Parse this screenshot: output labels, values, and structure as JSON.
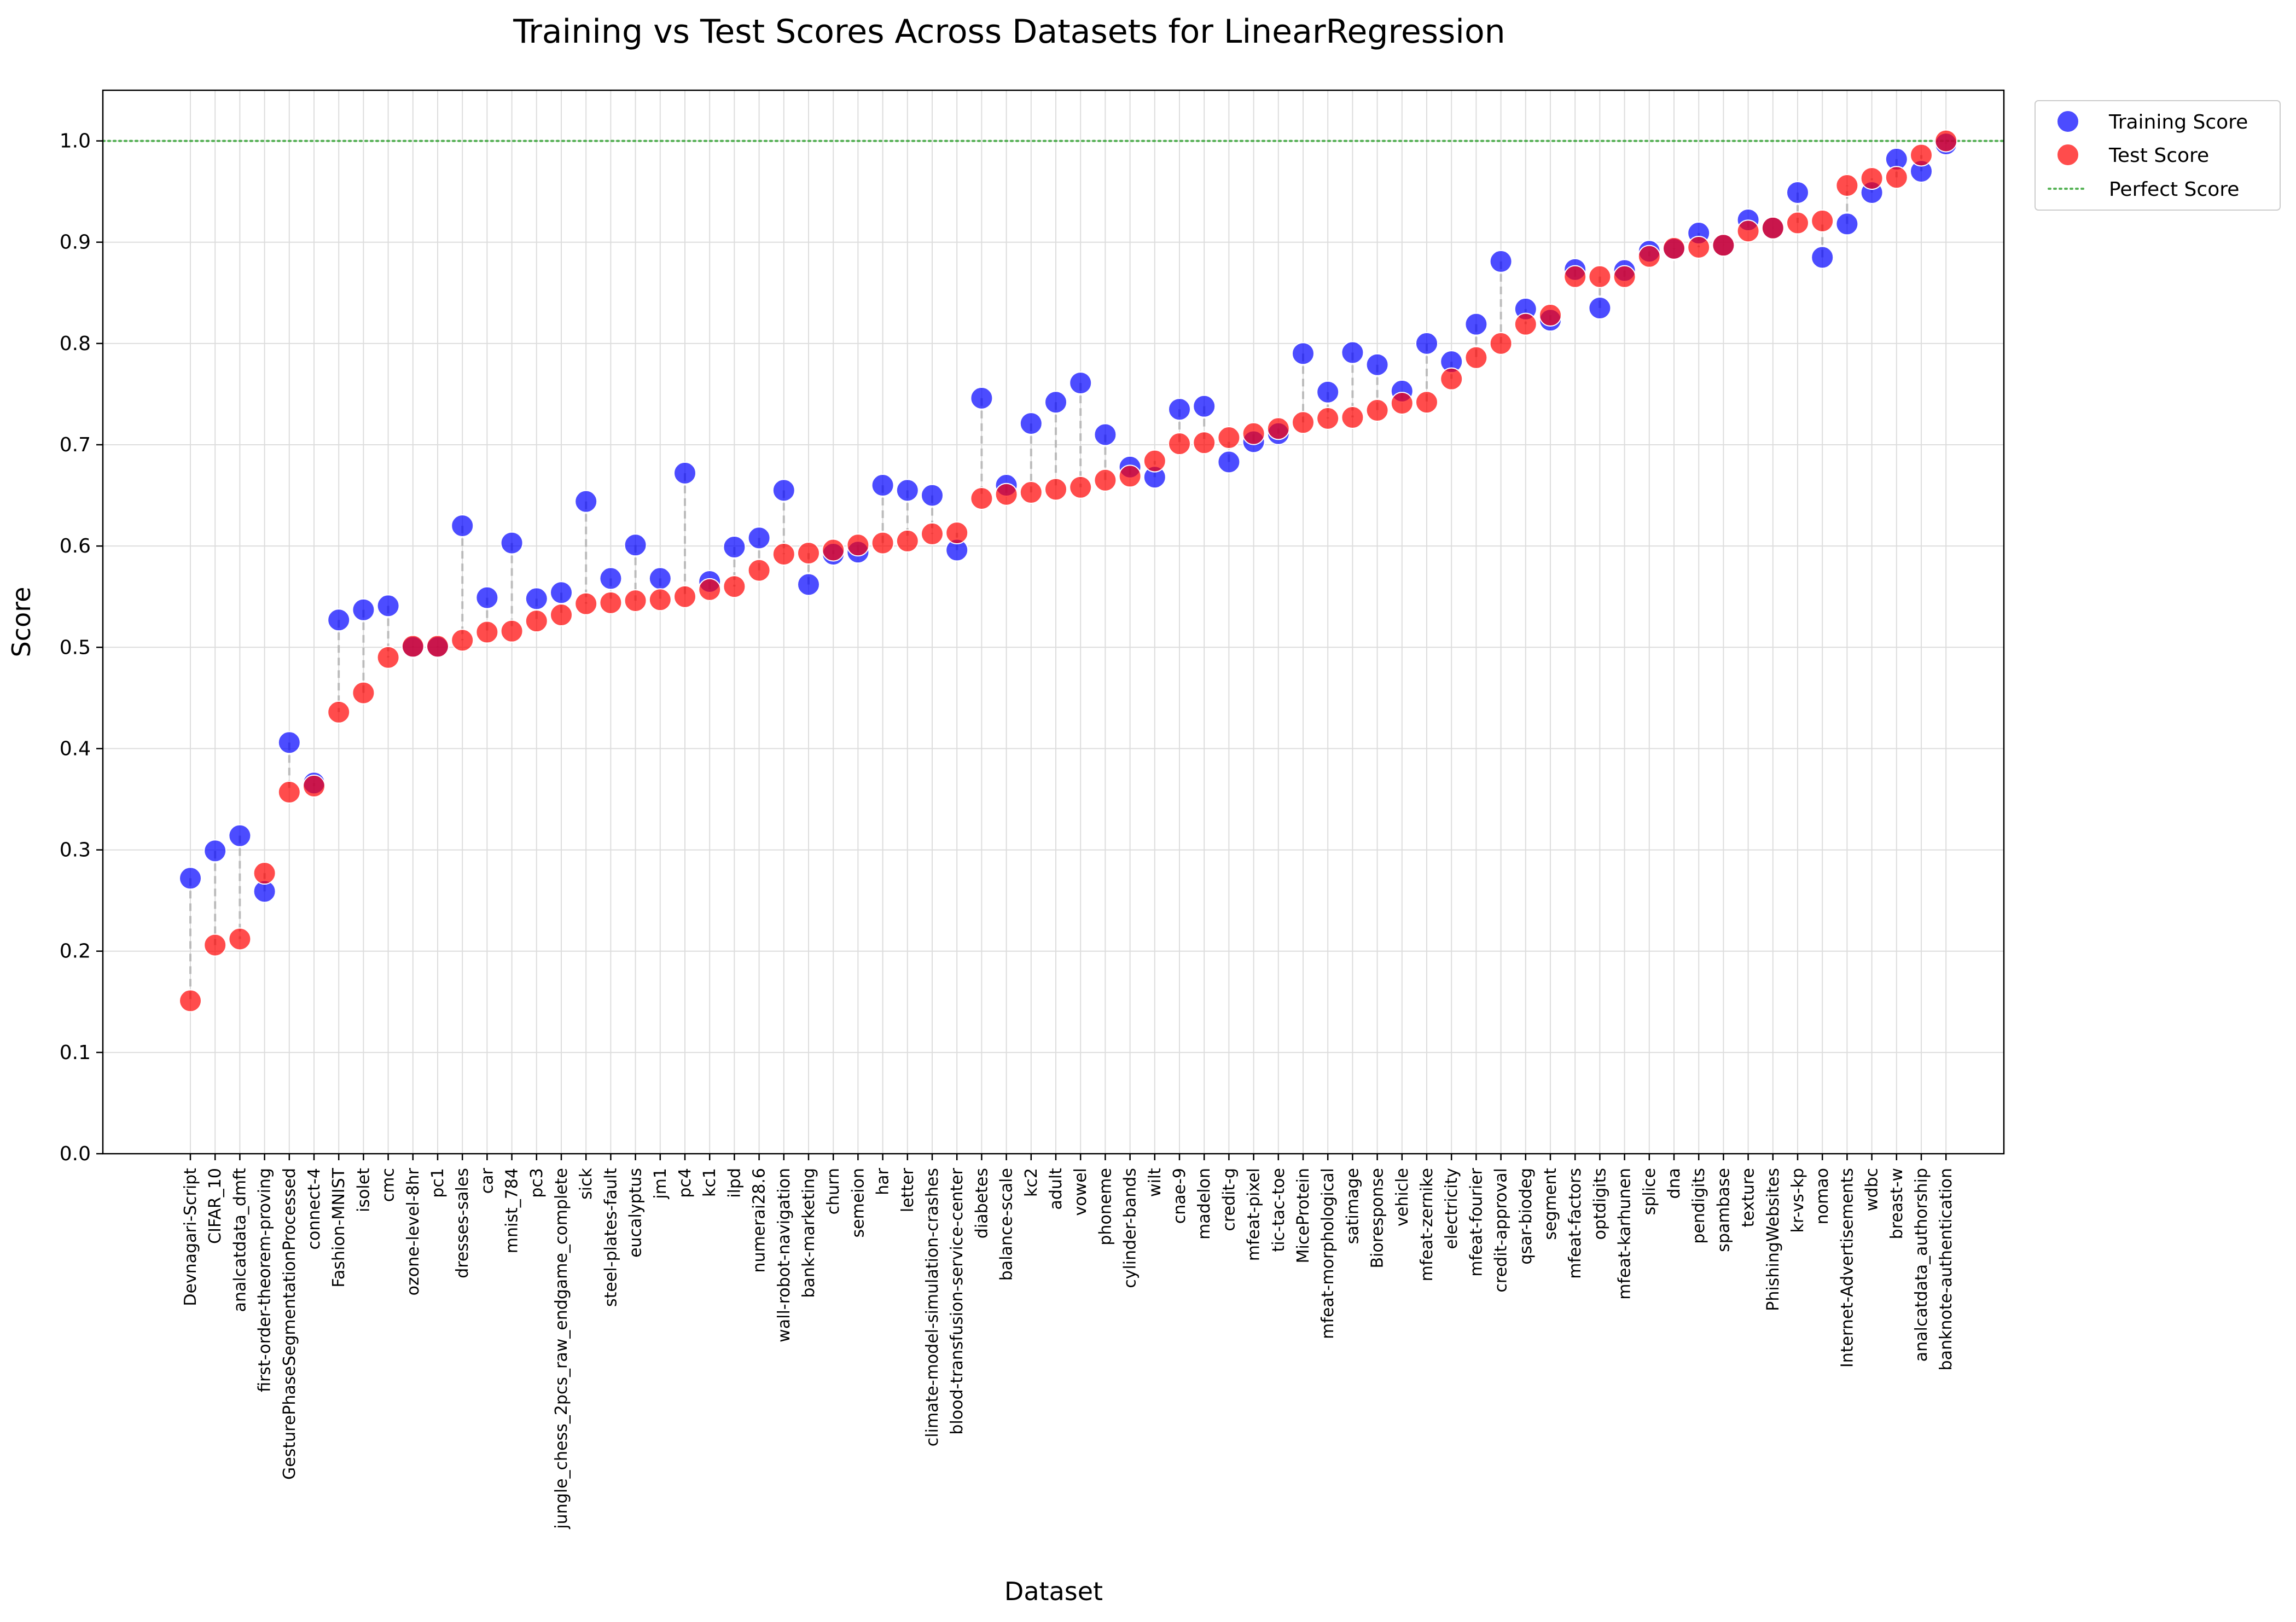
{
  "chart_data": {
    "type": "scatter",
    "title": "Training vs Test Scores Across Datasets for LinearRegression",
    "xlabel": "Dataset",
    "ylabel": "Score",
    "ylim": [
      0.0,
      1.05
    ],
    "yticks": [
      "0.0",
      "0.1",
      "0.2",
      "0.3",
      "0.4",
      "0.5",
      "0.6",
      "0.7",
      "0.8",
      "0.9",
      "1.0"
    ],
    "grid": true,
    "legend_position": "outside top-right",
    "reference_line": {
      "name": "Perfect Score",
      "y": 1.0,
      "color": "#2ca02c",
      "style": "dotted"
    },
    "connector_color": "#b0b0b0",
    "categories": [
      "Devnagari-Script",
      "CIFAR_10",
      "analcatdata_dmft",
      "first-order-theorem-proving",
      "GesturePhaseSegmentationProcessed",
      "connect-4",
      "Fashion-MNIST",
      "isolet",
      "cmc",
      "ozone-level-8hr",
      "pc1",
      "dresses-sales",
      "car",
      "mnist_784",
      "pc3",
      "jungle_chess_2pcs_raw_endgame_complete",
      "sick",
      "steel-plates-fault",
      "eucalyptus",
      "jm1",
      "pc4",
      "kc1",
      "ilpd",
      "numerai28.6",
      "wall-robot-navigation",
      "bank-marketing",
      "churn",
      "semeion",
      "har",
      "letter",
      "climate-model-simulation-crashes",
      "blood-transfusion-service-center",
      "diabetes",
      "balance-scale",
      "kc2",
      "adult",
      "vowel",
      "phoneme",
      "cylinder-bands",
      "wilt",
      "cnae-9",
      "madelon",
      "credit-g",
      "mfeat-pixel",
      "tic-tac-toe",
      "MiceProtein",
      "mfeat-morphological",
      "satimage",
      "Bioresponse",
      "vehicle",
      "mfeat-zernike",
      "electricity",
      "mfeat-fourier",
      "credit-approval",
      "qsar-biodeg",
      "segment",
      "mfeat-factors",
      "optdigits",
      "mfeat-karhunen",
      "splice",
      "dna",
      "pendigits",
      "spambase",
      "texture",
      "PhishingWebsites",
      "kr-vs-kp",
      "nomao",
      "Internet-Advertisements",
      "wdbc",
      "breast-w",
      "analcatdata_authorship",
      "banknote-authentication"
    ],
    "series": [
      {
        "name": "Training Score",
        "color": "#0000ff",
        "values": [
          0.272,
          0.299,
          0.314,
          0.259,
          0.406,
          0.366,
          0.527,
          0.537,
          0.541,
          0.5,
          0.5,
          0.62,
          0.549,
          0.603,
          0.548,
          0.554,
          0.644,
          0.568,
          0.601,
          0.568,
          0.672,
          0.565,
          0.599,
          0.608,
          0.655,
          0.562,
          0.592,
          0.594,
          0.66,
          0.655,
          0.65,
          0.596,
          0.746,
          0.66,
          0.721,
          0.742,
          0.761,
          0.71,
          0.678,
          0.668,
          0.735,
          0.738,
          0.683,
          0.703,
          0.711,
          0.79,
          0.752,
          0.791,
          0.779,
          0.753,
          0.8,
          0.782,
          0.819,
          0.881,
          0.834,
          0.823,
          0.873,
          0.835,
          0.872,
          0.891,
          0.893,
          0.909,
          0.897,
          0.922,
          0.914,
          0.949,
          0.885,
          0.918,
          0.949,
          0.982,
          0.97,
          0.997
        ]
      },
      {
        "name": "Test Score",
        "color": "#ff0000",
        "values": [
          0.151,
          0.206,
          0.212,
          0.277,
          0.357,
          0.363,
          0.436,
          0.455,
          0.49,
          0.501,
          0.501,
          0.507,
          0.515,
          0.516,
          0.526,
          0.532,
          0.543,
          0.544,
          0.546,
          0.547,
          0.55,
          0.557,
          0.56,
          0.576,
          0.592,
          0.593,
          0.596,
          0.601,
          0.603,
          0.605,
          0.612,
          0.613,
          0.647,
          0.651,
          0.653,
          0.656,
          0.658,
          0.665,
          0.669,
          0.684,
          0.701,
          0.702,
          0.707,
          0.711,
          0.716,
          0.722,
          0.726,
          0.727,
          0.734,
          0.741,
          0.742,
          0.765,
          0.786,
          0.8,
          0.819,
          0.828,
          0.866,
          0.866,
          0.866,
          0.886,
          0.894,
          0.895,
          0.897,
          0.911,
          0.914,
          0.919,
          0.921,
          0.956,
          0.963,
          0.964,
          0.986,
          1.0
        ]
      }
    ]
  }
}
